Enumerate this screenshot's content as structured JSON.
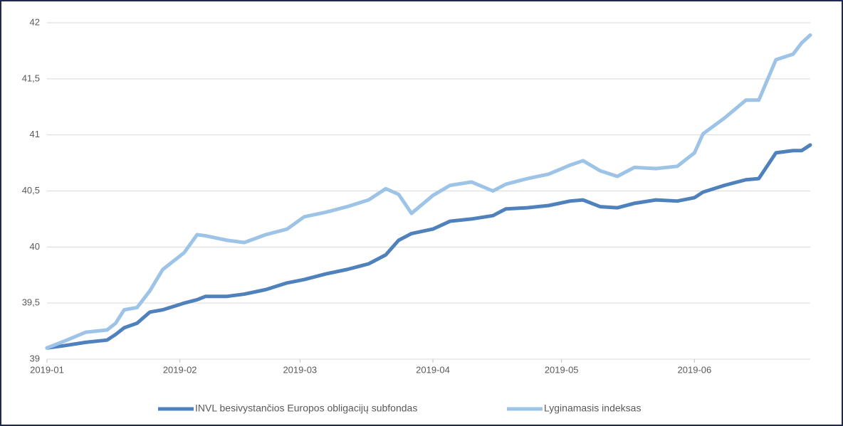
{
  "chart_data": {
    "type": "line",
    "x": [
      0,
      4,
      9,
      14,
      16,
      18,
      21,
      24,
      27,
      32,
      35,
      37,
      42,
      46,
      51,
      56,
      60,
      65,
      70,
      75,
      79,
      82,
      85,
      90,
      94,
      99,
      104,
      107,
      112,
      117,
      122,
      125,
      129,
      133,
      137,
      142,
      147,
      151,
      153,
      158,
      163,
      166,
      170,
      174,
      176,
      178
    ],
    "series": [
      {
        "name": "INVL besivystančios Europos obligacijų subfondas",
        "color": "#4f81bd",
        "values": [
          39.1,
          39.12,
          39.15,
          39.17,
          39.22,
          39.28,
          39.32,
          39.42,
          39.44,
          39.5,
          39.53,
          39.56,
          39.56,
          39.58,
          39.62,
          39.68,
          39.71,
          39.76,
          39.8,
          39.85,
          39.93,
          40.06,
          40.12,
          40.16,
          40.23,
          40.25,
          40.28,
          40.34,
          40.35,
          40.37,
          40.41,
          40.42,
          40.36,
          40.35,
          40.39,
          40.42,
          40.41,
          40.44,
          40.49,
          40.55,
          40.6,
          40.61,
          40.84,
          40.86,
          40.86,
          40.91
        ]
      },
      {
        "name": "Lyginamasis indeksas",
        "color": "#9dc3e6",
        "values": [
          39.1,
          39.16,
          39.24,
          39.26,
          39.32,
          39.44,
          39.46,
          39.61,
          39.8,
          39.95,
          40.11,
          40.1,
          40.06,
          40.04,
          40.11,
          40.16,
          40.27,
          40.31,
          40.36,
          40.42,
          40.52,
          40.47,
          40.3,
          40.46,
          40.55,
          40.58,
          40.5,
          40.56,
          40.61,
          40.65,
          40.73,
          40.77,
          40.68,
          40.63,
          40.71,
          40.7,
          40.72,
          40.84,
          41.01,
          41.15,
          41.31,
          41.31,
          41.67,
          41.72,
          41.82,
          41.89
        ]
      }
    ],
    "xlim": [
      0,
      178
    ],
    "xticks": [
      {
        "value": 0,
        "label": "2019-01"
      },
      {
        "value": 31,
        "label": "2019-02"
      },
      {
        "value": 59,
        "label": "2019-03"
      },
      {
        "value": 90,
        "label": "2019-04"
      },
      {
        "value": 120,
        "label": "2019-05"
      },
      {
        "value": 151,
        "label": "2019-06"
      }
    ],
    "ylim": [
      39,
      42
    ],
    "yticks": [
      39,
      {
        "value": 39.5,
        "label": "39,5"
      },
      40,
      {
        "value": 40.5,
        "label": "40,5"
      },
      41,
      {
        "value": 41.5,
        "label": "41,5"
      },
      42
    ],
    "grid": true,
    "legend": "bottom"
  }
}
